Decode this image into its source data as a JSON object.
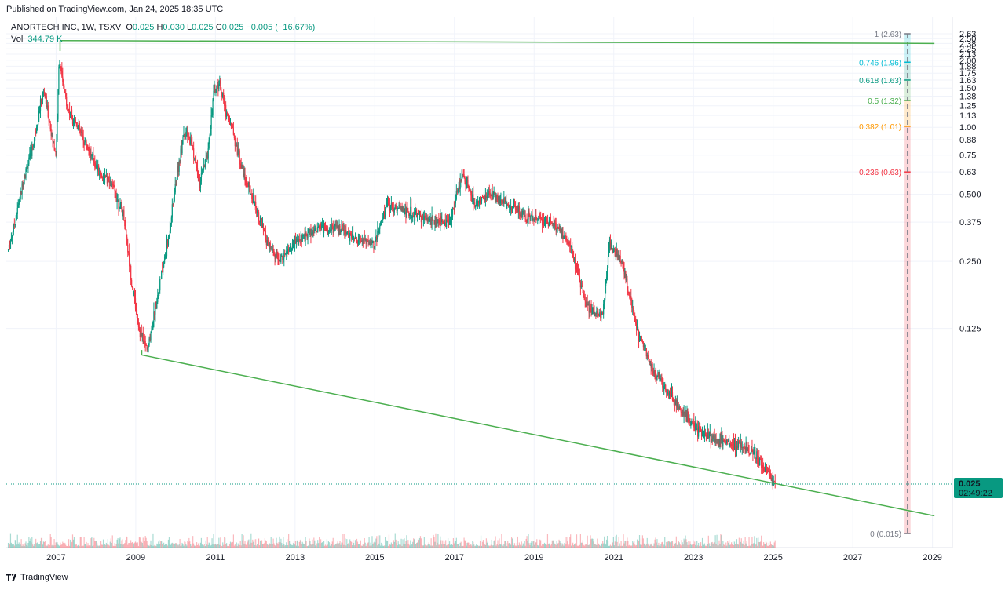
{
  "header": {
    "published": "Published on TradingView.com, Jan 24, 2025 18:35 UTC"
  },
  "legend": {
    "symbol": "ANORTECH INC, 1W, TSXV",
    "open_label": "O",
    "open": "0.025",
    "high_label": "H",
    "high": "0.030",
    "low_label": "L",
    "low": "0.025",
    "close_label": "C",
    "close": "0.025",
    "change": "−0.005 (−16.67%)",
    "vol_label": "Vol",
    "vol": "344.79 K"
  },
  "price_badge": {
    "price": "0.025",
    "countdown": "02:49:22",
    "color": "#089981"
  },
  "footer": {
    "brand": "TradingView"
  },
  "colors": {
    "up": "#089981",
    "down": "#f23645",
    "trendline": "#4caf50",
    "grid": "#f0f3fa"
  },
  "chart_data": {
    "type": "candlestick",
    "scale": "log",
    "x_axis": {
      "ticks": [
        "2007",
        "2009",
        "2011",
        "2013",
        "2015",
        "2017",
        "2019",
        "2021",
        "2023",
        "2025",
        "2027",
        "2029"
      ],
      "range_years": [
        2005.75,
        2029.5
      ]
    },
    "y_axis": {
      "ticks": [
        "2.63",
        "2.50",
        "2.38",
        "2.25",
        "2.13",
        "2.00",
        "1.88",
        "1.75",
        "1.63",
        "1.50",
        "1.38",
        "1.25",
        "1.13",
        "1.00",
        "0.88",
        "0.75",
        "0.63",
        "0.500",
        "0.375",
        "0.250",
        "0.125"
      ],
      "range": [
        0.015,
        2.63
      ]
    },
    "price_path": [
      [
        2005.8,
        0.28
      ],
      [
        2006.0,
        0.4
      ],
      [
        2006.2,
        0.6
      ],
      [
        2006.4,
        0.8
      ],
      [
        2006.5,
        1.0
      ],
      [
        2006.6,
        1.25
      ],
      [
        2006.7,
        1.45
      ],
      [
        2006.8,
        1.15
      ],
      [
        2006.9,
        0.9
      ],
      [
        2007.0,
        0.75
      ],
      [
        2007.08,
        2.1
      ],
      [
        2007.15,
        1.6
      ],
      [
        2007.3,
        1.2
      ],
      [
        2007.5,
        1.05
      ],
      [
        2007.8,
        0.8
      ],
      [
        2008.1,
        0.62
      ],
      [
        2008.4,
        0.55
      ],
      [
        2008.7,
        0.4
      ],
      [
        2008.9,
        0.2
      ],
      [
        2009.1,
        0.12
      ],
      [
        2009.3,
        0.1
      ],
      [
        2009.5,
        0.16
      ],
      [
        2009.8,
        0.3
      ],
      [
        2010.0,
        0.55
      ],
      [
        2010.2,
        0.95
      ],
      [
        2010.4,
        0.85
      ],
      [
        2010.6,
        0.55
      ],
      [
        2010.8,
        0.75
      ],
      [
        2010.95,
        1.4
      ],
      [
        2011.1,
        1.6
      ],
      [
        2011.25,
        1.2
      ],
      [
        2011.45,
        0.95
      ],
      [
        2011.7,
        0.62
      ],
      [
        2012.0,
        0.45
      ],
      [
        2012.3,
        0.3
      ],
      [
        2012.6,
        0.25
      ],
      [
        2013.0,
        0.3
      ],
      [
        2013.5,
        0.35
      ],
      [
        2014.0,
        0.35
      ],
      [
        2014.5,
        0.32
      ],
      [
        2015.0,
        0.3
      ],
      [
        2015.3,
        0.45
      ],
      [
        2015.8,
        0.42
      ],
      [
        2016.4,
        0.38
      ],
      [
        2016.9,
        0.38
      ],
      [
        2017.2,
        0.62
      ],
      [
        2017.5,
        0.45
      ],
      [
        2017.9,
        0.5
      ],
      [
        2018.3,
        0.45
      ],
      [
        2018.8,
        0.4
      ],
      [
        2019.4,
        0.38
      ],
      [
        2019.9,
        0.3
      ],
      [
        2020.3,
        0.16
      ],
      [
        2020.7,
        0.14
      ],
      [
        2020.9,
        0.3
      ],
      [
        2021.2,
        0.25
      ],
      [
        2021.6,
        0.12
      ],
      [
        2022.0,
        0.08
      ],
      [
        2022.5,
        0.06
      ],
      [
        2023.0,
        0.045
      ],
      [
        2023.5,
        0.04
      ],
      [
        2024.0,
        0.038
      ],
      [
        2024.5,
        0.035
      ],
      [
        2025.05,
        0.025
      ]
    ],
    "trendlines": [
      {
        "x": [
          2007.1,
          2029.05
        ],
        "y": [
          2.45,
          2.38
        ]
      },
      {
        "x": [
          2009.15,
          2029.05
        ],
        "y": [
          0.095,
          0.018
        ]
      }
    ],
    "fib_retracement": {
      "x_range": [
        2028.3,
        2028.45
      ],
      "levels": [
        {
          "ratio": "1",
          "label": "1 (2.63)",
          "price": 2.63,
          "color": "#787b86",
          "fill": "#9598a1"
        },
        {
          "ratio": "0.746",
          "label": "0.746 (1.96)",
          "price": 1.96,
          "color": "#00bcd4",
          "fill": "#00bcd4"
        },
        {
          "ratio": "0.618",
          "label": "0.618 (1.63)",
          "price": 1.63,
          "color": "#089981",
          "fill": "#089981"
        },
        {
          "ratio": "0.5",
          "label": "0.5 (1.32)",
          "price": 1.32,
          "color": "#4caf50",
          "fill": "#4caf50"
        },
        {
          "ratio": "0.382",
          "label": "0.382 (1.01)",
          "price": 1.01,
          "color": "#ff9800",
          "fill": "#ff9800"
        },
        {
          "ratio": "0.236",
          "label": "0.236 (0.63)",
          "price": 0.63,
          "color": "#f23645",
          "fill": "#f23645"
        },
        {
          "ratio": "0",
          "label": "0 (0.015)",
          "price": 0.015,
          "color": "#787b86",
          "fill": "#f23645"
        }
      ]
    }
  }
}
